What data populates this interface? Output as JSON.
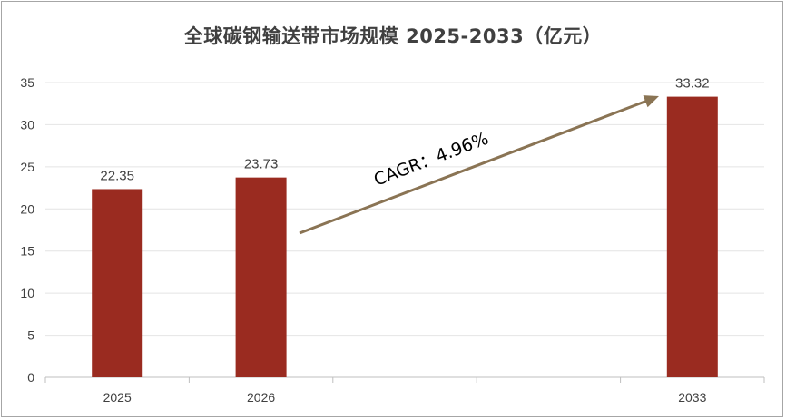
{
  "chart_data": {
    "type": "bar",
    "title": "全球碳钢输送带市场规模 2025-2033（亿元）",
    "categories": [
      "2025",
      "2026",
      "",
      "",
      "2033"
    ],
    "values": [
      22.35,
      23.73,
      null,
      null,
      33.32
    ],
    "data_labels": [
      "22.35",
      "23.73",
      "",
      "",
      "33.32"
    ],
    "ylim": [
      0,
      35
    ],
    "yticks": [
      "0",
      "5",
      "10",
      "15",
      "20",
      "25",
      "30",
      "35"
    ],
    "grid": true,
    "legend": "none",
    "bar_color": "#9a2b20",
    "annotation": {
      "text": "CAGR：4.96%",
      "arrow_color": "#8a7454"
    }
  }
}
